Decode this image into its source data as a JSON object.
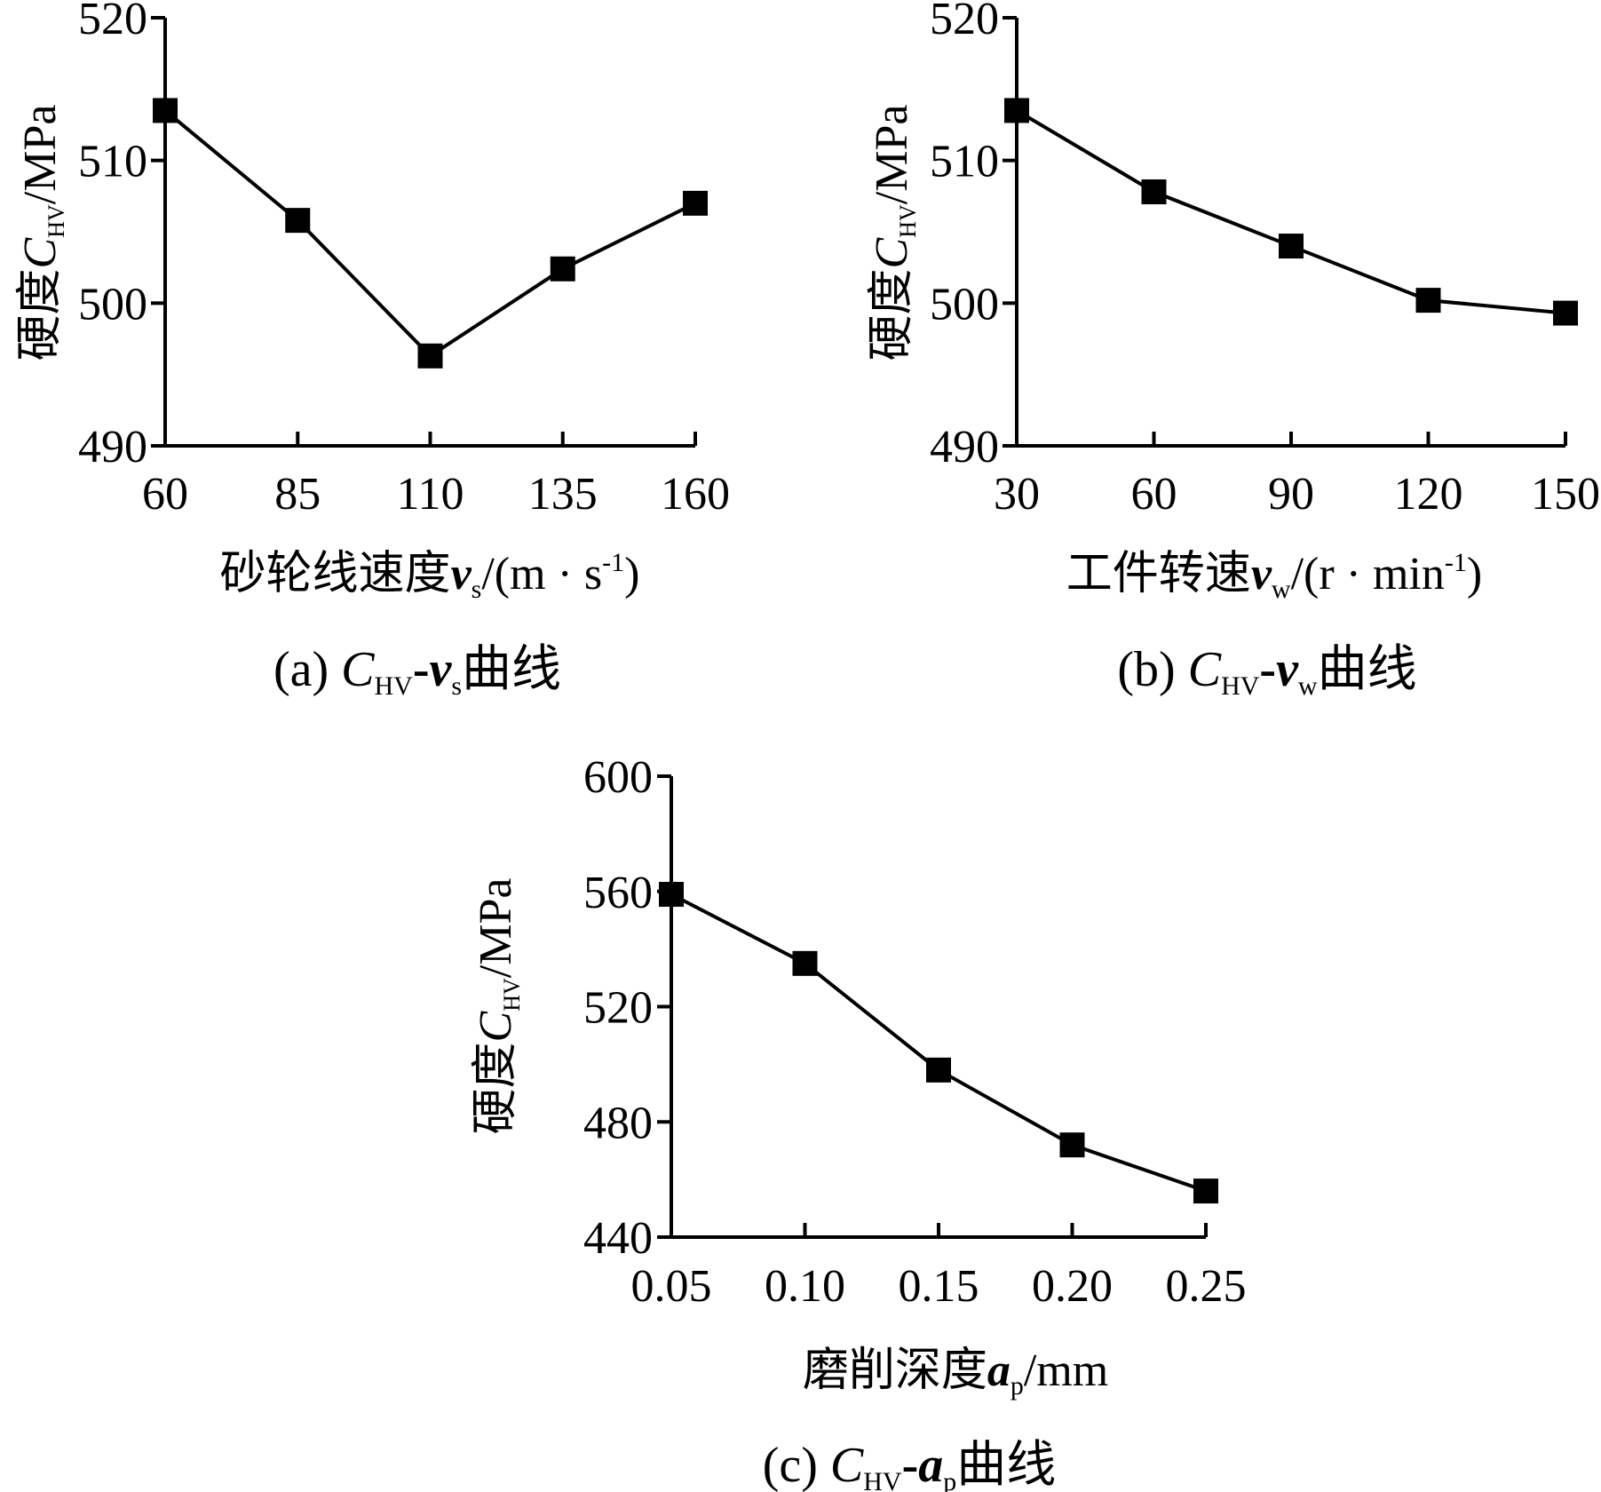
{
  "chart_data": [
    {
      "id": "a",
      "type": "line",
      "x": [
        60,
        85,
        110,
        135,
        160
      ],
      "series": [
        {
          "values": [
            513.5,
            505.8,
            496.3,
            502.4,
            507.0
          ]
        }
      ],
      "xticks": [
        "60",
        "85",
        "110",
        "135",
        "160"
      ],
      "yticks": [
        "490",
        "500",
        "510",
        "520"
      ],
      "xlim": [
        60,
        160
      ],
      "ylim": [
        490,
        520
      ],
      "ylabel": {
        "main": "硬度",
        "sym": "C",
        "sub": "HV",
        "unit": "/MPa"
      },
      "xlabel": {
        "main": "砂轮线速度",
        "sym": "v",
        "sub": "s",
        "unit": "/(m · s",
        "sup": "-1",
        "close": ")"
      },
      "caption": {
        "prefix": "(a) ",
        "sym1": "C",
        "sub1": "HV",
        "dash": "-",
        "sym2": "v",
        "sub2": "s",
        "suffix": "曲线"
      },
      "marker": "square",
      "color": "#000000",
      "grid": false
    },
    {
      "id": "b",
      "type": "line",
      "x": [
        30,
        60,
        90,
        120,
        150
      ],
      "series": [
        {
          "values": [
            513.5,
            507.8,
            504.0,
            500.2,
            499.3
          ]
        }
      ],
      "xticks": [
        "30",
        "60",
        "90",
        "120",
        "150"
      ],
      "yticks": [
        "490",
        "500",
        "510",
        "520"
      ],
      "xlim": [
        30,
        150
      ],
      "ylim": [
        490,
        520
      ],
      "ylabel": {
        "main": "硬度",
        "sym": "C",
        "sub": "HV",
        "unit": "/MPa"
      },
      "xlabel": {
        "main": "工件转速",
        "sym": "v",
        "sub": "w",
        "unit": "/(r · min",
        "sup": "-1",
        "close": ")"
      },
      "caption": {
        "prefix": "(b) ",
        "sym1": "C",
        "sub1": "HV",
        "dash": "-",
        "sym2": "v",
        "sub2": "w",
        "suffix": "曲线"
      },
      "marker": "square",
      "color": "#000000",
      "grid": false
    },
    {
      "id": "c",
      "type": "line",
      "x": [
        0.05,
        0.1,
        0.15,
        0.2,
        0.25
      ],
      "series": [
        {
          "values": [
            559,
            535,
            498,
            472,
            456
          ]
        }
      ],
      "xticks": [
        "0.05",
        "0.10",
        "0.15",
        "0.20",
        "0.25"
      ],
      "yticks": [
        "440",
        "480",
        "520",
        "560",
        "600"
      ],
      "xlim": [
        0.05,
        0.25
      ],
      "ylim": [
        440,
        600
      ],
      "ylabel": {
        "main": "硬度",
        "sym": "C",
        "sub": "HV",
        "unit": "/MPa"
      },
      "xlabel": {
        "main": "磨削深度",
        "sym": "a",
        "sub": "p",
        "unit": "/mm",
        "sup": "",
        "close": ""
      },
      "caption": {
        "prefix": "(c) ",
        "sym1": "C",
        "sub1": "HV",
        "dash": "-",
        "sym2": "a",
        "sub2": "p",
        "suffix": "曲线"
      },
      "marker": "square",
      "color": "#000000",
      "grid": false
    }
  ]
}
